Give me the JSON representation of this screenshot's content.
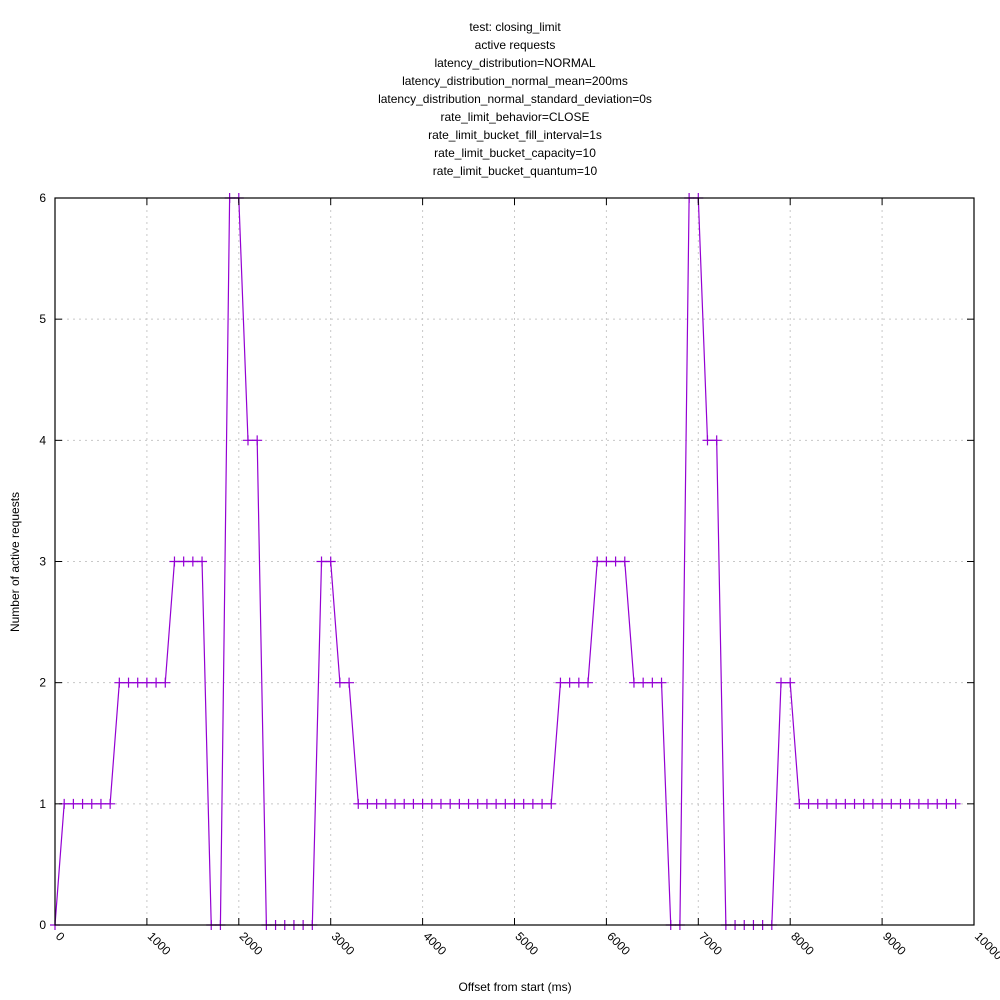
{
  "chart_data": {
    "type": "line",
    "title_lines": [
      "test: closing_limit",
      "active requests",
      "latency_distribution=NORMAL",
      "latency_distribution_normal_mean=200ms",
      "latency_distribution_normal_standard_deviation=0s",
      "rate_limit_behavior=CLOSE",
      "rate_limit_bucket_fill_interval=1s",
      "rate_limit_bucket_capacity=10",
      "rate_limit_bucket_quantum=10"
    ],
    "xlabel": "Offset from start (ms)",
    "ylabel": "Number of active requests",
    "xlim": [
      0,
      10000
    ],
    "ylim": [
      0,
      6
    ],
    "x_ticks": [
      0,
      1000,
      2000,
      3000,
      4000,
      5000,
      6000,
      7000,
      8000,
      9000,
      10000
    ],
    "y_ticks": [
      0,
      1,
      2,
      3,
      4,
      5,
      6
    ],
    "grid": true,
    "legend": "none",
    "series": [
      {
        "color": "#9400d3",
        "x": [
          0,
          100,
          200,
          300,
          400,
          500,
          600,
          700,
          800,
          900,
          1000,
          1100,
          1200,
          1300,
          1400,
          1500,
          1600,
          1700,
          1800,
          1900,
          2000,
          2100,
          2200,
          2300,
          2400,
          2500,
          2600,
          2700,
          2800,
          2900,
          3000,
          3100,
          3200,
          3300,
          3400,
          3500,
          3600,
          3700,
          3800,
          3900,
          4000,
          4100,
          4200,
          4300,
          4400,
          4500,
          4600,
          4700,
          4800,
          4900,
          5000,
          5100,
          5200,
          5300,
          5400,
          5500,
          5600,
          5700,
          5800,
          5900,
          6000,
          6100,
          6200,
          6300,
          6400,
          6500,
          6600,
          6700,
          6800,
          6900,
          7000,
          7100,
          7200,
          7300,
          7400,
          7500,
          7600,
          7700,
          7800,
          7900,
          8000,
          8100,
          8200,
          8300,
          8400,
          8500,
          8600,
          8700,
          8800,
          8900,
          9000,
          9100,
          9200,
          9300,
          9400,
          9500,
          9600,
          9700,
          9800
        ],
        "y": [
          0,
          1,
          1,
          1,
          1,
          1,
          1,
          2,
          2,
          2,
          2,
          2,
          2,
          3,
          3,
          3,
          3,
          0,
          0,
          6,
          6,
          4,
          4,
          0,
          0,
          0,
          0,
          0,
          0,
          3,
          3,
          2,
          2,
          1,
          1,
          1,
          1,
          1,
          1,
          1,
          1,
          1,
          1,
          1,
          1,
          1,
          1,
          1,
          1,
          1,
          1,
          1,
          1,
          1,
          1,
          2,
          2,
          2,
          2,
          3,
          3,
          3,
          3,
          2,
          2,
          2,
          2,
          0,
          0,
          6,
          6,
          4,
          4,
          0,
          0,
          0,
          0,
          0,
          0,
          2,
          2,
          1,
          1,
          1,
          1,
          1,
          1,
          1,
          1,
          1,
          1,
          1,
          1,
          1,
          1,
          1,
          1,
          1,
          1
        ]
      }
    ]
  }
}
